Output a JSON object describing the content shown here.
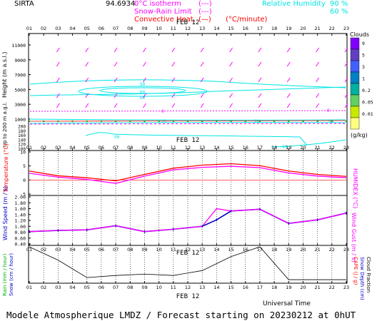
{
  "header": {
    "station": "SIRTA",
    "coords": "94.6934",
    "rh_label": "Relative Humidity",
    "rh_90": "90 %",
    "rh_60": "60 %",
    "isotherm_label": "0°C isotherm",
    "isotherm_sym": "(---)",
    "snow_label": "Snow-Rain Limit",
    "snow_sym": "(---)",
    "conv_label": "Convective Heat.",
    "conv_sym": "(—)",
    "conv_unit": "(°C/minute)"
  },
  "hours": [
    "01",
    "02",
    "03",
    "04",
    "05",
    "06",
    "07",
    "08",
    "09",
    "10",
    "11",
    "12",
    "13",
    "14",
    "15",
    "16",
    "17",
    "18",
    "19",
    "20",
    "21",
    "22",
    "23"
  ],
  "date_label": "FEB 12",
  "footer_title": "Modele Atmospherique LMDZ / Forecast starting on 20230212 at 0hUT",
  "universal_time": "Universal Time",
  "colors": {
    "cyan": "#00e5e5",
    "magenta": "#ff00ff",
    "red": "#ff0000",
    "blue": "#0000c8",
    "green": "#00b000",
    "black": "#000000"
  },
  "chart_data": [
    {
      "type": "line",
      "name": "height_panel",
      "ylabel": "Height (m a.s.l.)",
      "ylabel_low": "Up to 200 m a.g.l.",
      "yticks_upper": [
        "11000",
        "9000",
        "7000",
        "5000",
        "3000",
        "1000"
      ],
      "yticks_lower": [
        "200",
        "180",
        "160",
        "140",
        "120",
        "100"
      ],
      "rh_contour_labels": [
        "90",
        "60",
        "60",
        "90",
        "90",
        "90",
        "90",
        "90"
      ],
      "isotherm_label": "0",
      "clouds_legend": {
        "title": "Clouds",
        "unit": "(g/kg)",
        "levels": [
          "9",
          "5",
          "3",
          "1",
          "0.2",
          "0.05",
          "0.01"
        ],
        "colors": [
          "#8000ff",
          "#6040c0",
          "#4060ff",
          "#0080c0",
          "#00b0a0",
          "#60d060",
          "#c8e800",
          "#ffff80"
        ]
      }
    },
    {
      "type": "line",
      "name": "temperature_panel",
      "ylabel": "Temperature (°C)",
      "ylabel_right": "HUMIDEX (°C)",
      "yticks": [
        "10",
        "5",
        "0",
        "-5"
      ],
      "ylim": [
        -5,
        10
      ],
      "x": [
        1,
        3,
        5,
        7,
        9,
        11,
        13,
        15,
        17,
        19,
        21,
        23
      ],
      "series": [
        {
          "color": "#ff0000",
          "values": [
            3.2,
            1.5,
            0.8,
            -0.3,
            2.0,
            4.2,
            5.3,
            5.8,
            5.1,
            3.2,
            2.0,
            1.3
          ]
        },
        {
          "color": "#ff00ff",
          "values": [
            2.4,
            1.0,
            0.2,
            -1.2,
            1.4,
            3.6,
            4.5,
            4.9,
            4.4,
            2.5,
            1.4,
            0.8
          ]
        }
      ]
    },
    {
      "type": "line",
      "name": "wind_panel",
      "ylabel": "Wind Speed (m / s)",
      "ylabel_right": "Wind Gust (m / s)",
      "yticks": [
        "2.00",
        "1.80",
        "1.60",
        "1.40",
        "1.20",
        "1.00",
        "0.80",
        "0.60",
        "0.40"
      ],
      "ylim": [
        0.4,
        2.0
      ],
      "x": [
        1,
        3,
        5,
        7,
        9,
        11,
        13,
        14,
        15,
        17,
        19,
        21,
        23
      ],
      "series": [
        {
          "color": "#0000c8",
          "values": [
            0.82,
            0.86,
            0.88,
            1.02,
            0.82,
            0.9,
            1.0,
            1.22,
            1.52,
            1.58,
            1.1,
            1.22,
            1.45
          ]
        },
        {
          "color": "#ff00ff",
          "values": [
            0.82,
            0.86,
            0.88,
            1.02,
            0.82,
            0.9,
            1.0,
            1.6,
            1.52,
            1.58,
            1.1,
            1.22,
            1.45
          ]
        }
      ]
    },
    {
      "type": "line",
      "name": "precip_panel",
      "ylabel_left": "Rain (mm / hour)",
      "ylabel_left2": "Snow (cm / hour)",
      "ylabel_right": "CAPE (J / g)",
      "ylabel_right2": "Snow Depth (cm)",
      "ylabel_right3": "Cloud Fraction",
      "x": [
        1,
        3,
        5,
        7,
        9,
        11,
        13,
        15,
        17,
        19,
        21,
        23
      ],
      "series": [
        {
          "color": "#000000",
          "values": [
            1.0,
            0.62,
            0.12,
            0.18,
            0.22,
            0.18,
            0.32,
            0.72,
            1.0,
            0.06,
            0.06,
            0.06
          ]
        }
      ]
    }
  ]
}
